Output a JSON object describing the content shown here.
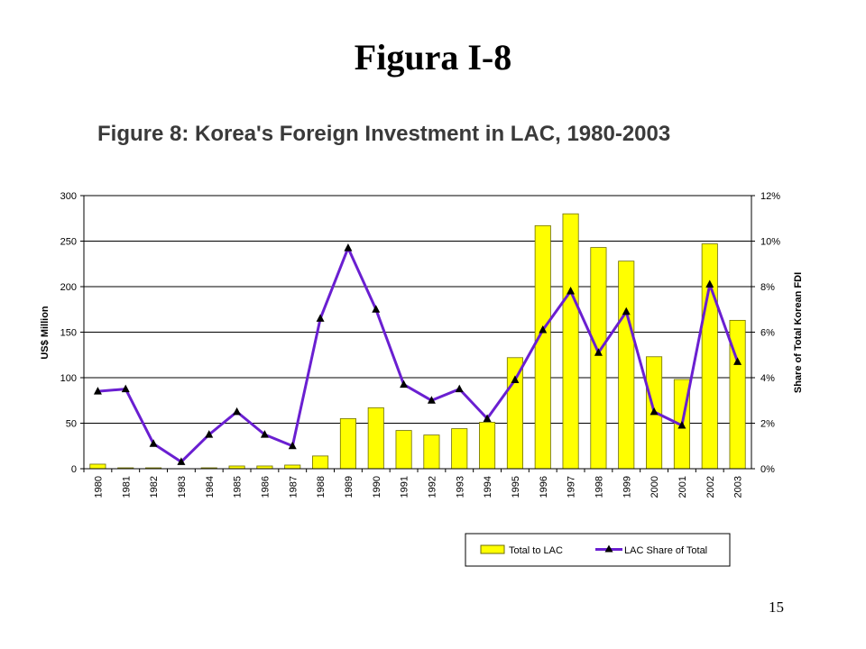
{
  "slide": {
    "title": "Figura I-8",
    "page_number": "15"
  },
  "colors": {
    "bar_fill": "#ffff00",
    "bar_stroke": "#6e6e00",
    "line": "#6a1fd1",
    "marker": "#000000"
  },
  "chart_data": {
    "type": "bar",
    "title": "Figure 8: Korea's Foreign Investment in LAC, 1980-2003",
    "xlabel": "",
    "ylabel": "US$ Million",
    "y2label": "Share of Total Korean FDI",
    "categories": [
      "1980",
      "1981",
      "1982",
      "1983",
      "1984",
      "1985",
      "1986",
      "1987",
      "1988",
      "1989",
      "1990",
      "1991",
      "1992",
      "1993",
      "1994",
      "1995",
      "1996",
      "1997",
      "1998",
      "1999",
      "2000",
      "2001",
      "2002",
      "2003"
    ],
    "ylim": [
      0,
      300
    ],
    "yticks": [
      "0",
      "50",
      "100",
      "150",
      "200",
      "250",
      "300"
    ],
    "y2lim": [
      0,
      12
    ],
    "y2ticks": [
      "0%",
      "2%",
      "4%",
      "6%",
      "8%",
      "10%",
      "12%"
    ],
    "grid": true,
    "legend_position": "bottom-right",
    "series": [
      {
        "name": "Total to LAC",
        "type": "bar",
        "axis": "left",
        "values": [
          5,
          1,
          1,
          0,
          1,
          3,
          3,
          4,
          14,
          55,
          67,
          42,
          37,
          44,
          51,
          122,
          267,
          280,
          243,
          228,
          123,
          98,
          247,
          163
        ]
      },
      {
        "name": "LAC Share of Total",
        "type": "line",
        "axis": "right",
        "values": [
          3.4,
          3.5,
          1.1,
          0.3,
          1.5,
          2.5,
          1.5,
          1.0,
          6.6,
          9.7,
          7.0,
          3.7,
          3.0,
          3.5,
          2.2,
          3.9,
          6.1,
          7.8,
          5.1,
          6.9,
          2.5,
          1.9,
          8.1,
          4.7
        ]
      }
    ]
  }
}
